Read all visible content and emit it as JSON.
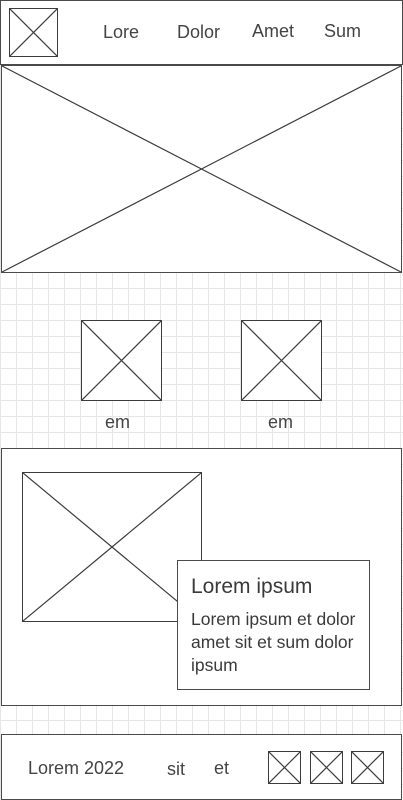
{
  "header": {
    "logo_icon": "image-placeholder-icon",
    "nav": [
      {
        "label": "Lore"
      },
      {
        "label": "Dolor"
      },
      {
        "label": "Amet"
      },
      {
        "label": "Sum"
      }
    ]
  },
  "hero": {
    "image_icon": "image-placeholder-icon"
  },
  "thumbnails": [
    {
      "caption": "em",
      "icon": "image-placeholder-icon"
    },
    {
      "caption": "em",
      "icon": "image-placeholder-icon"
    }
  ],
  "feature": {
    "image_icon": "image-placeholder-icon",
    "card_title": "Lorem ipsum",
    "card_body": "Lorem ipsum et dolor amet sit et sum dolor ipsum"
  },
  "footer": {
    "copyright": "Lorem 2022",
    "link_1": "sit",
    "link_2": "et",
    "social_icons": [
      "image-placeholder-icon",
      "image-placeholder-icon",
      "image-placeholder-icon"
    ]
  }
}
